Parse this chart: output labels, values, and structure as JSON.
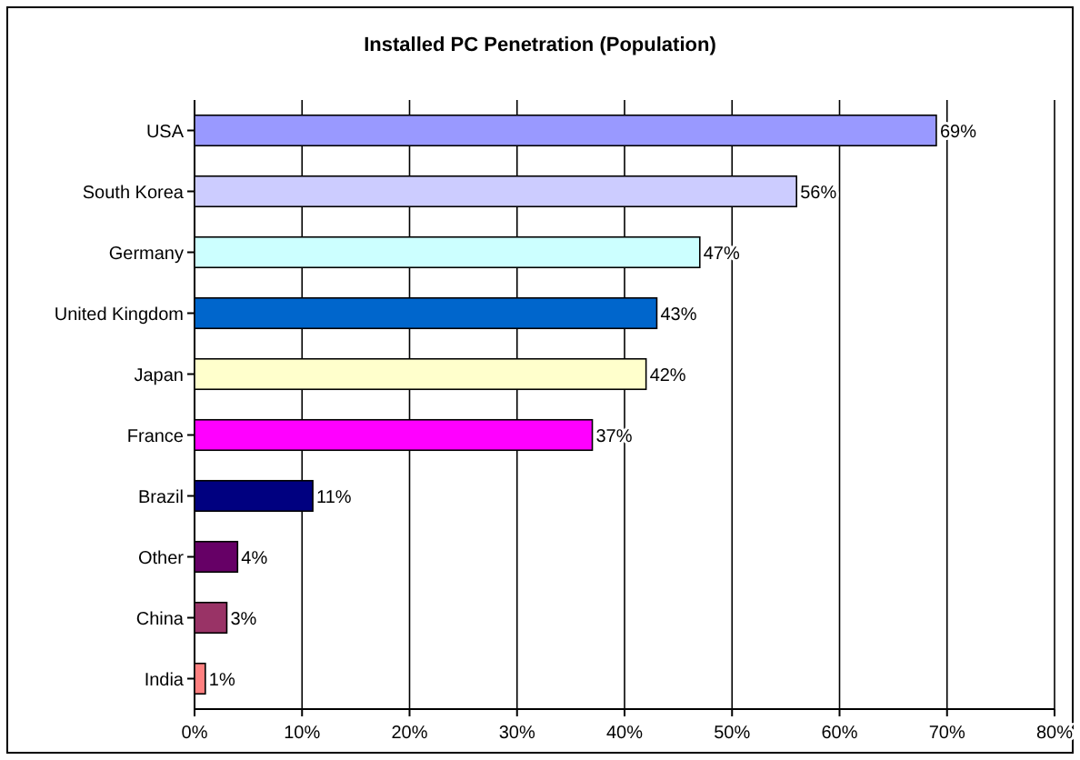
{
  "chart_data": {
    "type": "bar",
    "orientation": "horizontal",
    "title": "Installed PC Penetration (Population)",
    "categories": [
      "USA",
      "South Korea",
      "Germany",
      "United Kingdom",
      "Japan",
      "France",
      "Brazil",
      "Other",
      "China",
      "India"
    ],
    "values": [
      69,
      56,
      47,
      43,
      42,
      37,
      11,
      4,
      3,
      1
    ],
    "colors": [
      "#9999ff",
      "#ccccff",
      "#ccffff",
      "#0066cc",
      "#ffffcc",
      "#ff00ff",
      "#000080",
      "#660066",
      "#993366",
      "#ff8080"
    ],
    "value_labels": [
      "69%",
      "56%",
      "47%",
      "43%",
      "42%",
      "37%",
      "11%",
      "4%",
      "3%",
      "1%"
    ],
    "xlim": [
      0,
      80
    ],
    "xticks": [
      {
        "value": 0,
        "label": "0%"
      },
      {
        "value": 10,
        "label": "10%"
      },
      {
        "value": 20,
        "label": "20%"
      },
      {
        "value": 30,
        "label": "30%"
      },
      {
        "value": 40,
        "label": "40%"
      },
      {
        "value": 50,
        "label": "50%"
      },
      {
        "value": 60,
        "label": "60%"
      },
      {
        "value": 70,
        "label": "70%"
      },
      {
        "value": 80,
        "label": "80%"
      }
    ],
    "grid": "x"
  }
}
